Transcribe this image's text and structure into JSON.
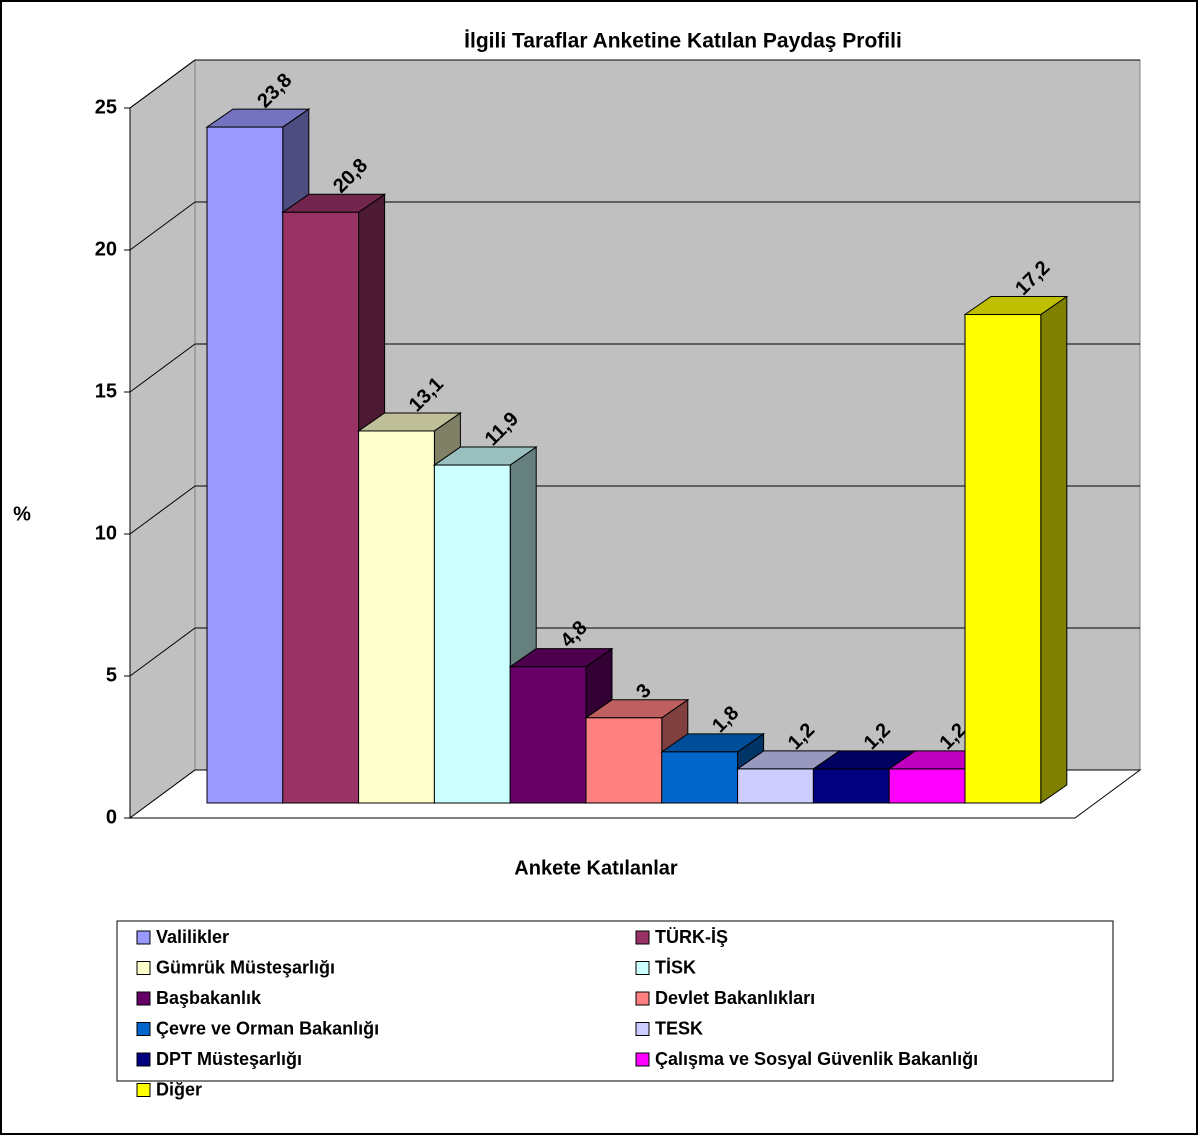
{
  "chart_data": {
    "type": "bar3d",
    "title": "İlgili Taraflar Anketine Katılan Paydaş Profili",
    "xlabel": "Ankete Katılanlar",
    "ylabel": "%",
    "ylim": [
      0,
      25
    ],
    "yticks": [
      0,
      5,
      10,
      15,
      20,
      25
    ],
    "grid": true,
    "series": [
      {
        "name": "Valilikler",
        "color": "#9999ff",
        "values": [
          23.8
        ],
        "value_labels": [
          "23,8"
        ]
      },
      {
        "name": "TÜRK-İŞ",
        "color": "#993366",
        "values": [
          20.8
        ],
        "value_labels": [
          "20,8"
        ]
      },
      {
        "name": "Gümrük Müsteşarlığı",
        "color": "#ffffcc",
        "values": [
          13.1
        ],
        "value_labels": [
          "13,1"
        ]
      },
      {
        "name": "TİSK",
        "color": "#ccffff",
        "values": [
          11.9
        ],
        "value_labels": [
          "11,9"
        ]
      },
      {
        "name": "Başbakanlık",
        "color": "#660066",
        "values": [
          4.8
        ],
        "value_labels": [
          "4,8"
        ]
      },
      {
        "name": "Devlet Bakanlıkları",
        "color": "#ff8080",
        "values": [
          3
        ],
        "value_labels": [
          "3"
        ]
      },
      {
        "name": "Çevre ve Orman Bakanlığı",
        "color": "#0066cc",
        "values": [
          1.8
        ],
        "value_labels": [
          "1,8"
        ]
      },
      {
        "name": "TESK",
        "color": "#ccccff",
        "values": [
          1.2
        ],
        "value_labels": [
          "1,2"
        ]
      },
      {
        "name": "DPT Müsteşarlığı",
        "color": "#000080",
        "values": [
          1.2
        ],
        "value_labels": [
          "1,2"
        ]
      },
      {
        "name": "Çalışma ve Sosyal Güvenlik Bakanlığı",
        "color": "#ff00ff",
        "values": [
          1.2
        ],
        "value_labels": [
          "1,2"
        ]
      },
      {
        "name": "Diğer",
        "color": "#ffff00",
        "values": [
          17.2
        ],
        "value_labels": [
          "17,2"
        ]
      }
    ]
  }
}
